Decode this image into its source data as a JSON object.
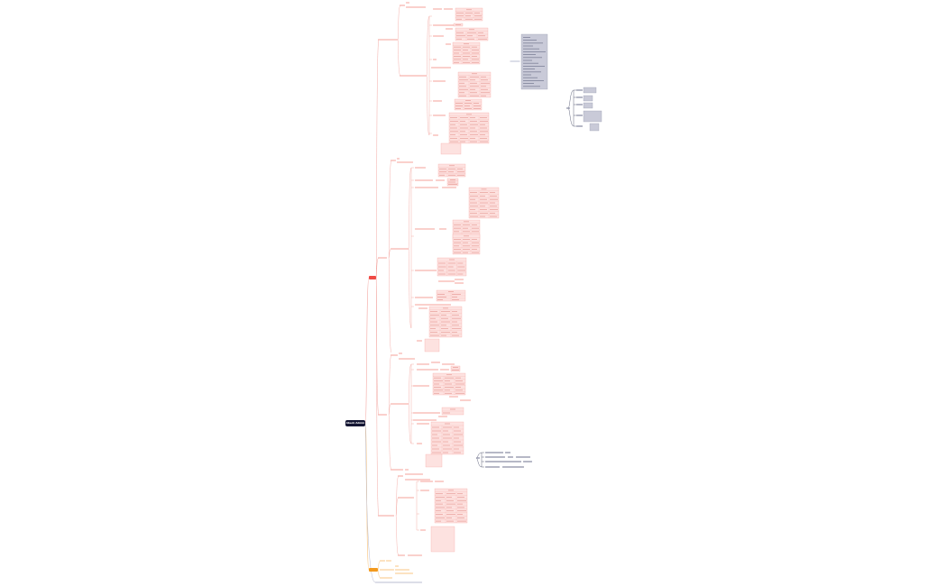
{
  "root": {
    "label": "Abeck Admin"
  },
  "main_nodes": [
    {
      "label": "",
      "color": "#f04a45"
    },
    {
      "label": "",
      "color": "#f39a1e"
    }
  ],
  "colors": {
    "root_fill": "#141633",
    "red_line": "#f4a9a4",
    "red_text_bar": "#f6b3ae",
    "table_fill": "#fde2e0",
    "table_stroke": "#f3a29c",
    "orange_line": "#f7c27a",
    "gray_box_fill": "#c9cad8",
    "gray_box_stroke": "#8d90a8",
    "navy_line": "#3a3f5c"
  }
}
